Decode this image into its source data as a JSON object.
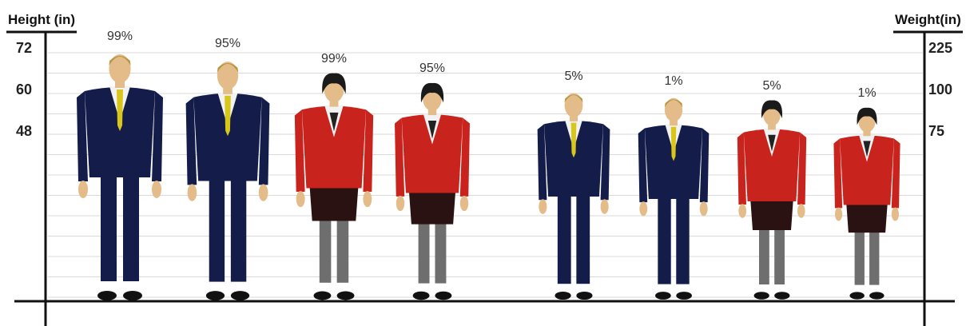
{
  "left_axis": {
    "title": "Height (in)",
    "ticks": [
      "72",
      "60",
      "48"
    ]
  },
  "right_axis": {
    "title": "Weight(in)",
    "ticks": [
      "225",
      "100",
      "75"
    ]
  },
  "figures": [
    {
      "label": "99%",
      "gender": "male",
      "relative_height": 1.0
    },
    {
      "label": "95%",
      "gender": "male",
      "relative_height": 0.97
    },
    {
      "label": "99%",
      "gender": "female",
      "relative_height": 0.91
    },
    {
      "label": "95%",
      "gender": "female",
      "relative_height": 0.87
    },
    {
      "label": "5%",
      "gender": "male",
      "relative_height": 0.84
    },
    {
      "label": "1%",
      "gender": "male",
      "relative_height": 0.82
    },
    {
      "label": "5%",
      "gender": "female",
      "relative_height": 0.8
    },
    {
      "label": "1%",
      "gender": "female",
      "relative_height": 0.77
    }
  ],
  "colors": {
    "suit": "#141d4a",
    "jacket": "#c8231c",
    "skirt": "#2a1212",
    "tie": "#d9c61a",
    "skin": "#e3bc8a",
    "hair_male": "#b8953f",
    "hair_female": "#1a1a1a",
    "stockings": "#6e6e6e",
    "gridline": "#d9d9d9"
  }
}
